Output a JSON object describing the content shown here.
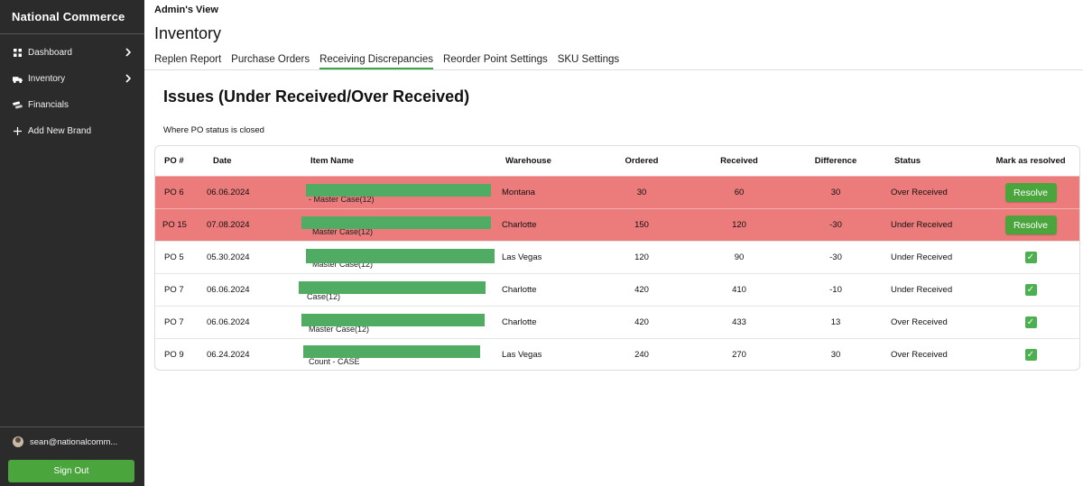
{
  "sidebar": {
    "brand": "National Commerce",
    "items": [
      {
        "label": "Dashboard",
        "icon": "grid-icon",
        "chevron": true
      },
      {
        "label": "Inventory",
        "icon": "truck-icon",
        "chevron": true
      },
      {
        "label": "Financials",
        "icon": "money-icon",
        "chevron": false
      },
      {
        "label": "Add New Brand",
        "icon": "plus-icon",
        "chevron": false
      }
    ],
    "user_email": "sean@nationalcomm...",
    "signout_label": "Sign Out"
  },
  "header": {
    "admin_view": "Admin's View",
    "title": "Inventory",
    "tabs": [
      {
        "label": "Replen Report",
        "active": false
      },
      {
        "label": "Purchase Orders",
        "active": false
      },
      {
        "label": "Receiving Discrepancies",
        "active": true
      },
      {
        "label": "Reorder Point Settings",
        "active": false
      },
      {
        "label": "SKU Settings",
        "active": false
      }
    ]
  },
  "section": {
    "title": "Issues (Under Received/Over Received)",
    "subtitle": "Where PO status is closed"
  },
  "table": {
    "headers": {
      "po": "PO #",
      "date": "Date",
      "item": "Item Name",
      "warehouse": "Warehouse",
      "ordered": "Ordered",
      "received": "Received",
      "difference": "Difference",
      "status": "Status",
      "resolved": "Mark as resolved"
    },
    "resolve_label": "Resolve",
    "check_mark": "✓",
    "rows": [
      {
        "po": "PO 6",
        "date": "06.06.2024",
        "item": "- Master Case(12)",
        "warehouse": "Montana",
        "ordered": "30",
        "received": "60",
        "difference": "30",
        "status": "Over Received",
        "resolved": false
      },
      {
        "po": "PO 15",
        "date": "07.08.2024",
        "item": "Master Case(12)",
        "warehouse": "Charlotte",
        "ordered": "150",
        "received": "120",
        "difference": "-30",
        "status": "Under Received",
        "resolved": false
      },
      {
        "po": "PO 5",
        "date": "05.30.2024",
        "item": "Master Case(12)",
        "warehouse": "Las Vegas",
        "ordered": "120",
        "received": "90",
        "difference": "-30",
        "status": "Under Received",
        "resolved": true
      },
      {
        "po": "PO 7",
        "date": "06.06.2024",
        "item": "Case(12)",
        "warehouse": "Charlotte",
        "ordered": "420",
        "received": "410",
        "difference": "-10",
        "status": "Under Received",
        "resolved": true
      },
      {
        "po": "PO 7",
        "date": "06.06.2024",
        "item": "Master Case(12)",
        "warehouse": "Charlotte",
        "ordered": "420",
        "received": "433",
        "difference": "13",
        "status": "Over Received",
        "resolved": true
      },
      {
        "po": "PO 9",
        "date": "06.24.2024",
        "item": "Count - CASE",
        "warehouse": "Las Vegas",
        "ordered": "240",
        "received": "270",
        "difference": "30",
        "status": "Over Received",
        "resolved": true
      }
    ]
  },
  "colors": {
    "sidebar_bg": "#2b2b2b",
    "accent_green": "#4aa63c",
    "row_alert": "#ec7b7b",
    "redaction": "#4fac62"
  }
}
